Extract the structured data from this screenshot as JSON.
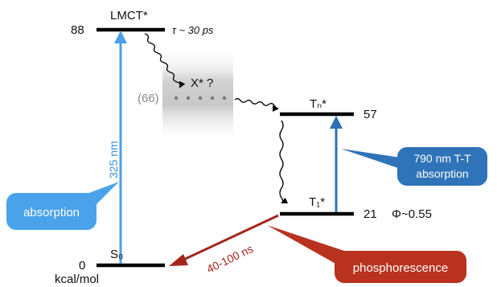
{
  "levels": {
    "lmct": {
      "name": "LMCT*",
      "energy": "88",
      "lifetime": "τ ~ 30 ps"
    },
    "x": {
      "name": "X* ?",
      "energy": "(66)"
    },
    "tn": {
      "name": "Tₙ*",
      "energy": "57"
    },
    "t1": {
      "name": "T₁*",
      "energy": "21",
      "quantum_yield": "Φ~0.55"
    },
    "s0": {
      "name": "S₀",
      "energy": "0",
      "unit": "kcal/mol"
    }
  },
  "transitions": {
    "absorption_uv": {
      "label": "325 nm"
    },
    "phosphorescence": {
      "label": "40-100 ns"
    }
  },
  "callouts": {
    "absorption": "absorption",
    "tt_line1": "790 nm T-T",
    "tt_line2": "absorption",
    "phosphorescence": "phosphorescence"
  },
  "colors": {
    "level_line": "#000000",
    "absorption_arrow": "#4a9fe8",
    "tt_arrow": "#2f6fb3",
    "phosphorescence_arrow": "#a3261a",
    "absorption_bubble": "#4aa3ea",
    "tt_bubble": "#2f73b8",
    "phosphorescence_bubble": "#b8321f",
    "x_region": "#d9d9d9"
  }
}
